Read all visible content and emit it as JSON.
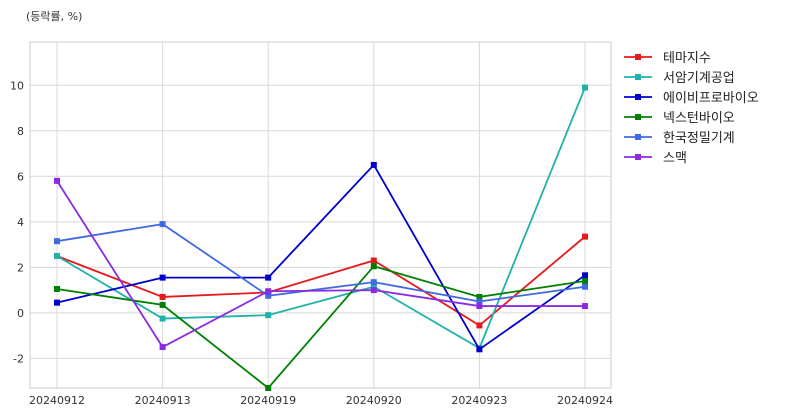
{
  "chart_data": {
    "type": "line",
    "unit_label": "(등락률, %)",
    "categories": [
      "20240912",
      "20240913",
      "20240919",
      "20240920",
      "20240923",
      "20240924"
    ],
    "yticks": [
      -2,
      0,
      2,
      4,
      6,
      8,
      10
    ],
    "ylim": [
      -3.3,
      11.9
    ],
    "grid": true,
    "legend_position": "right",
    "series": [
      {
        "name": "테마지수",
        "color": "#e41a1c",
        "values": [
          2.5,
          0.7,
          0.9,
          2.3,
          -0.55,
          3.35
        ]
      },
      {
        "name": "서암기계공업",
        "color": "#20b2aa",
        "values": [
          2.5,
          -0.25,
          -0.1,
          1.15,
          -1.55,
          9.9
        ]
      },
      {
        "name": "에이비프로바이오",
        "color": "#0000cd",
        "values": [
          0.45,
          1.55,
          1.55,
          6.5,
          -1.6,
          1.65
        ]
      },
      {
        "name": "넥스턴바이오",
        "color": "#008000",
        "values": [
          1.05,
          0.35,
          -3.3,
          2.05,
          0.7,
          1.4
        ]
      },
      {
        "name": "한국정밀기계",
        "color": "#4169e1",
        "values": [
          3.15,
          3.9,
          0.75,
          1.35,
          0.5,
          1.15
        ]
      },
      {
        "name": "스맥",
        "color": "#8a2be2",
        "values": [
          5.8,
          -1.5,
          0.95,
          1.0,
          0.3,
          0.3
        ]
      }
    ]
  }
}
